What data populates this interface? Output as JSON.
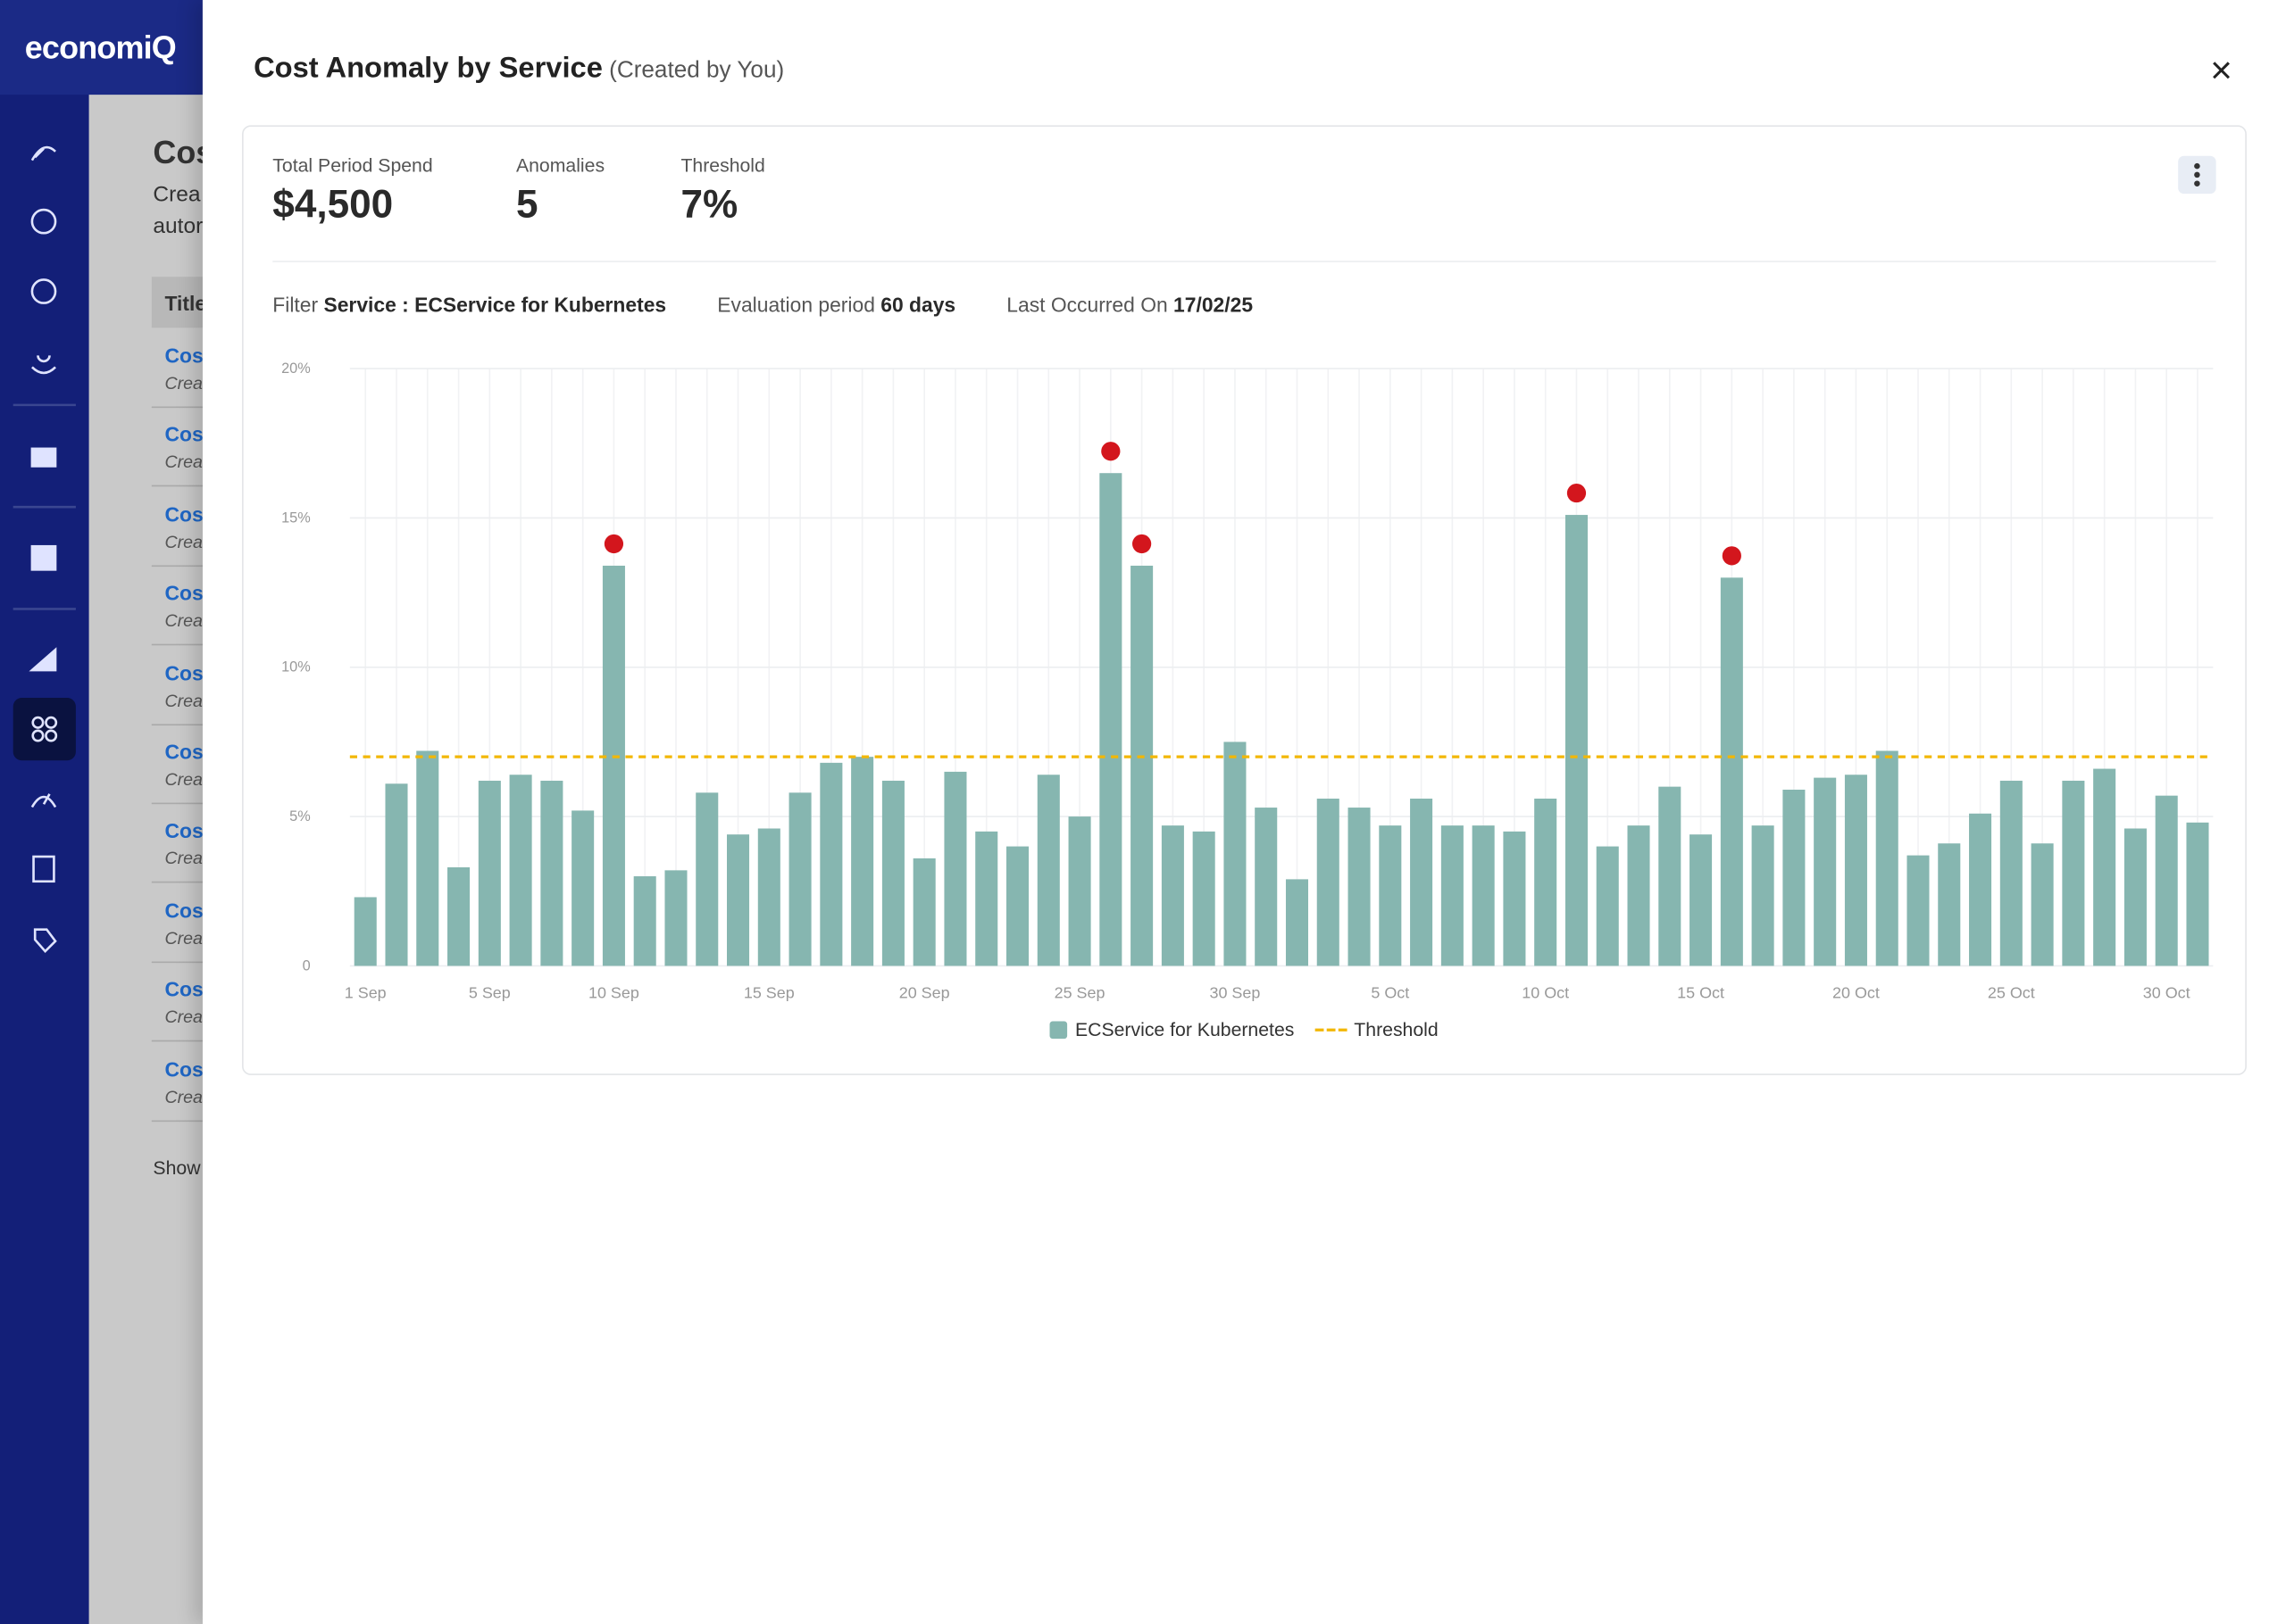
{
  "app": {
    "logo": "economiQ"
  },
  "background": {
    "title": "Cos",
    "subtitle_lines": [
      "Crea",
      "autor"
    ],
    "table_header": "Title",
    "rows": [
      {
        "title": "Cos",
        "subtitle": "Crea"
      },
      {
        "title": "Cos",
        "subtitle": "Crea"
      },
      {
        "title": "Cos",
        "subtitle": "Crea"
      },
      {
        "title": "Cos",
        "subtitle": "Crea"
      },
      {
        "title": "Cos",
        "subtitle": "Crea"
      },
      {
        "title": "Cos",
        "subtitle": "Crea"
      },
      {
        "title": "Cos",
        "subtitle": "Crea"
      },
      {
        "title": "Cos",
        "subtitle": "Crea"
      },
      {
        "title": "Cos",
        "subtitle": "Crea"
      },
      {
        "title": "Cos",
        "subtitle": "Crea"
      }
    ],
    "footer": "Show"
  },
  "modal": {
    "title": "Cost Anomaly by Service",
    "subtitle": "(Created by You)",
    "close": "×",
    "stats": [
      {
        "label": "Total Period Spend",
        "value": "$4,500"
      },
      {
        "label": "Anomalies",
        "value": "5"
      },
      {
        "label": "Threshold",
        "value": "7%"
      }
    ],
    "filters": [
      {
        "label": "Filter",
        "value": "Service : ECService for Kubernetes"
      },
      {
        "label": "Evaluation period",
        "value": "60 days"
      },
      {
        "label": "Last Occurred On",
        "value": "17/02/25"
      }
    ]
  },
  "chart_data": {
    "type": "bar",
    "categories": [
      "1 Sep",
      null,
      null,
      null,
      "5 Sep",
      null,
      null,
      null,
      "10 Sep",
      null,
      null,
      null,
      null,
      "15 Sep",
      null,
      null,
      null,
      null,
      "20 Sep",
      null,
      null,
      null,
      null,
      "25 Sep",
      null,
      null,
      null,
      null,
      "30 Sep",
      null,
      null,
      null,
      null,
      "5 Oct",
      null,
      null,
      null,
      null,
      "10 Oct",
      null,
      null,
      null,
      null,
      "15 Oct",
      null,
      null,
      null,
      null,
      "20 Oct",
      null,
      null,
      null,
      null,
      "25 Oct",
      null,
      null,
      null,
      null,
      "30 Oct",
      null
    ],
    "series": [
      {
        "name": "ECService for Kubernetes",
        "color": "#86b6b0",
        "values": [
          2.3,
          6.1,
          7.2,
          3.3,
          6.2,
          6.4,
          6.2,
          5.2,
          13.4,
          3.0,
          3.2,
          5.8,
          4.4,
          4.6,
          5.8,
          6.8,
          7.0,
          6.2,
          3.6,
          6.5,
          4.5,
          4.0,
          6.4,
          5.0,
          16.5,
          13.4,
          4.7,
          4.5,
          7.5,
          5.3,
          2.9,
          5.6,
          5.3,
          4.7,
          5.6,
          4.7,
          4.7,
          4.5,
          5.6,
          15.1,
          4.0,
          4.7,
          6.0,
          4.4,
          13.0,
          4.7,
          5.9,
          6.3,
          6.4,
          7.2,
          3.7,
          4.1,
          5.1,
          6.2,
          4.1,
          6.2,
          6.6,
          4.6,
          5.7,
          4.8
        ]
      }
    ],
    "threshold": {
      "name": "Threshold",
      "value": 7,
      "color": "#f2b705"
    },
    "anomalies": {
      "color": "#d3161d",
      "indices": [
        8,
        24,
        25,
        39,
        44
      ]
    },
    "ylim": [
      0,
      20
    ],
    "yticks": [
      0,
      {
        "value": 5,
        "label": "5%"
      },
      {
        "value": 10,
        "label": "10%"
      },
      {
        "value": 15,
        "label": "15%"
      },
      {
        "value": 20,
        "label": "20%"
      }
    ],
    "grid": true,
    "legend": "bottom"
  }
}
